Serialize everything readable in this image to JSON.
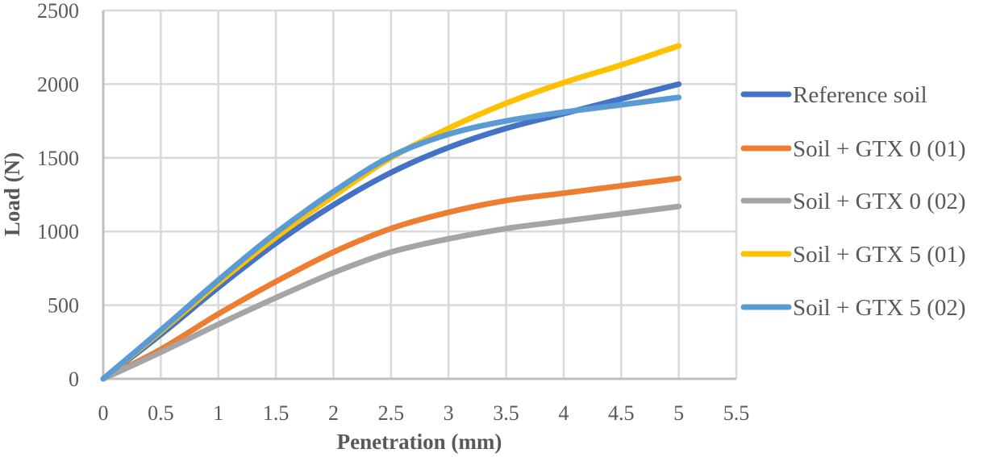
{
  "chart_data": {
    "type": "line",
    "title": "",
    "xlabel": "Penetration (mm)",
    "ylabel": "Load (N)",
    "xlim": [
      0,
      5.5
    ],
    "ylim": [
      0,
      2500
    ],
    "xticks": [
      "0",
      "0.5",
      "1",
      "1.5",
      "2",
      "2.5",
      "3",
      "3.5",
      "4",
      "4.5",
      "5",
      "5.5"
    ],
    "xtick_values": [
      0,
      0.5,
      1,
      1.5,
      2,
      2.5,
      3,
      3.5,
      4,
      4.5,
      5,
      5.5
    ],
    "yticks": [
      "0",
      "500",
      "1000",
      "1500",
      "2000",
      "2500"
    ],
    "ytick_values": [
      0,
      500,
      1000,
      1500,
      2000,
      2500
    ],
    "grid": true,
    "legend_position": "right",
    "smooth": true,
    "x": [
      0,
      0.5,
      1,
      1.5,
      2,
      2.5,
      3,
      3.5,
      4,
      4.5,
      5
    ],
    "series": [
      {
        "name": "Reference soil",
        "color": "#4472C4",
        "values": [
          0,
          300,
          620,
          920,
          1180,
          1400,
          1570,
          1700,
          1800,
          1900,
          2000
        ]
      },
      {
        "name": "Soil + GTX 0 (01)",
        "color": "#ED7D31",
        "values": [
          0,
          200,
          440,
          660,
          860,
          1020,
          1130,
          1210,
          1260,
          1310,
          1360
        ]
      },
      {
        "name": "Soil + GTX 0 (02)",
        "color": "#A5A5A5",
        "values": [
          0,
          180,
          370,
          550,
          720,
          860,
          950,
          1020,
          1070,
          1120,
          1170
        ]
      },
      {
        "name": "Soil + GTX 5 (01)",
        "color": "#FFC000",
        "values": [
          0,
          320,
          650,
          960,
          1240,
          1500,
          1700,
          1870,
          2010,
          2130,
          2260
        ]
      },
      {
        "name": "Soil + GTX 5 (02)",
        "color": "#5B9BD5",
        "values": [
          0,
          330,
          670,
          990,
          1270,
          1510,
          1660,
          1750,
          1810,
          1860,
          1910
        ]
      }
    ]
  }
}
